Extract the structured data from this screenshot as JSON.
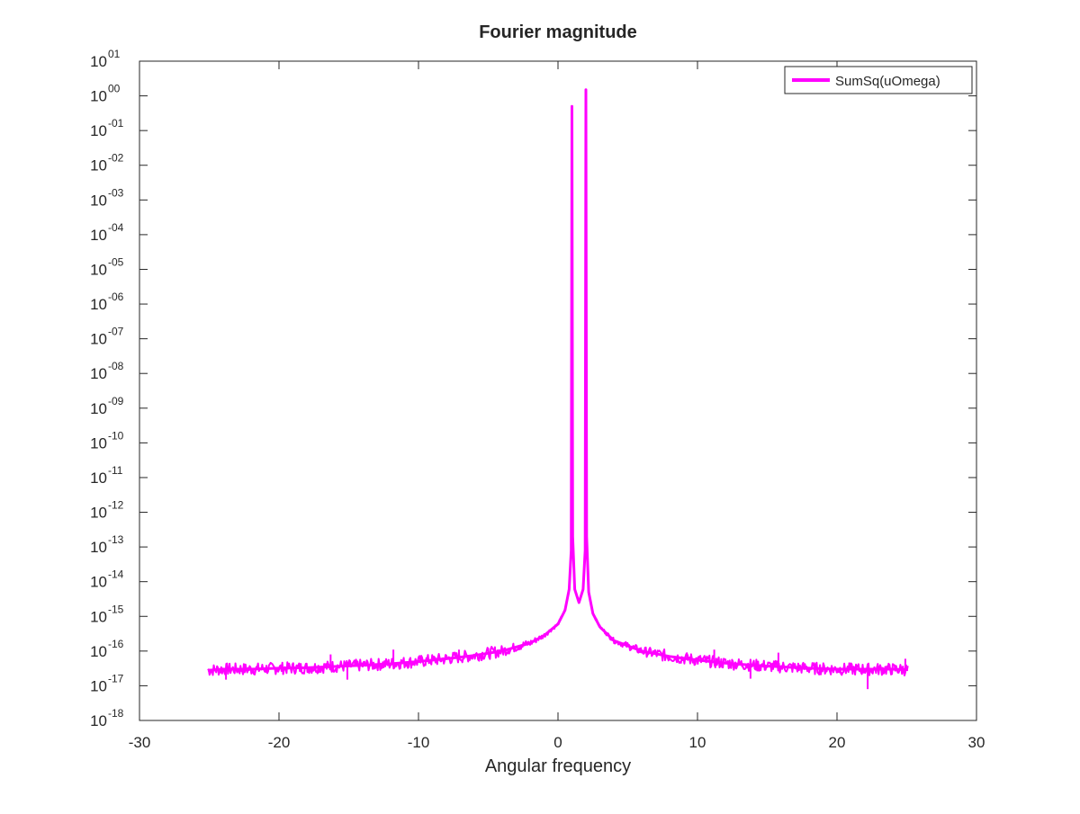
{
  "chart_data": {
    "type": "line",
    "title": "Fourier magnitude",
    "xlabel": "Angular frequency",
    "ylabel": "",
    "xlim": [
      -30,
      30
    ],
    "ylim_exponents": [
      -18,
      1
    ],
    "yscale": "log",
    "grid": false,
    "legend_position": "top-right",
    "xticks": [
      "-30",
      "-20",
      "-10",
      "0",
      "10",
      "20",
      "30"
    ],
    "yticks": [
      {
        "base": "10",
        "exp": "01"
      },
      {
        "base": "10",
        "exp": "00"
      },
      {
        "base": "10",
        "exp": "-01"
      },
      {
        "base": "10",
        "exp": "-02"
      },
      {
        "base": "10",
        "exp": "-03"
      },
      {
        "base": "10",
        "exp": "-04"
      },
      {
        "base": "10",
        "exp": "-05"
      },
      {
        "base": "10",
        "exp": "-06"
      },
      {
        "base": "10",
        "exp": "-07"
      },
      {
        "base": "10",
        "exp": "-08"
      },
      {
        "base": "10",
        "exp": "-09"
      },
      {
        "base": "10",
        "exp": "-10"
      },
      {
        "base": "10",
        "exp": "-11"
      },
      {
        "base": "10",
        "exp": "-12"
      },
      {
        "base": "10",
        "exp": "-13"
      },
      {
        "base": "10",
        "exp": "-14"
      },
      {
        "base": "10",
        "exp": "-15"
      },
      {
        "base": "10",
        "exp": "-16"
      },
      {
        "base": "10",
        "exp": "-17"
      },
      {
        "base": "10",
        "exp": "-18"
      }
    ],
    "series": [
      {
        "name": "SumSq(uOmega)",
        "color": "#ff00ff",
        "x": [
          -25.1,
          -24,
          -22,
          -20,
          -18,
          -16,
          -14,
          -12,
          -10,
          -8,
          -6,
          -4,
          -2,
          -1,
          0,
          0.5,
          0.8,
          0.95,
          1.0,
          1.05,
          1.2,
          1.5,
          1.8,
          1.95,
          2.0,
          2.05,
          2.2,
          2.5,
          3,
          4,
          6,
          8,
          10,
          12,
          14,
          16,
          18,
          20,
          22,
          24,
          25.1
        ],
        "y": [
          2.8e-17,
          3e-17,
          3e-17,
          3.2e-17,
          3.3e-17,
          3.6e-17,
          3.9e-17,
          4.3e-17,
          5e-17,
          6e-17,
          7.5e-17,
          1e-16,
          1.7e-16,
          2.8e-16,
          6e-16,
          1.5e-15,
          6e-15,
          8e-14,
          0.5,
          2e-13,
          6e-15,
          2.5e-15,
          6e-15,
          8e-14,
          1.5,
          2e-13,
          5e-15,
          1.2e-15,
          5e-16,
          2e-16,
          1e-16,
          7e-17,
          5.5e-17,
          4.5e-17,
          3.9e-17,
          3.5e-17,
          3.2e-17,
          3e-17,
          3e-17,
          3e-17,
          2.9e-17
        ]
      }
    ],
    "spikes": [
      {
        "x": -23.8,
        "y": 1.5e-17
      },
      {
        "x": -16.3,
        "y": 8e-17
      },
      {
        "x": -15.1,
        "y": 1.5e-17
      },
      {
        "x": -11.8,
        "y": 1.1e-16
      },
      {
        "x": -7.1,
        "y": 1.1e-16
      },
      {
        "x": -2.6,
        "y": 1.5e-16
      },
      {
        "x": 9.3,
        "y": 8e-17
      },
      {
        "x": 11.2,
        "y": 1.1e-16
      },
      {
        "x": 13.8,
        "y": 1.6e-17
      },
      {
        "x": 15.8,
        "y": 9e-17
      },
      {
        "x": 22.2,
        "y": 8e-18
      },
      {
        "x": 24.9,
        "y": 6e-17
      }
    ]
  }
}
